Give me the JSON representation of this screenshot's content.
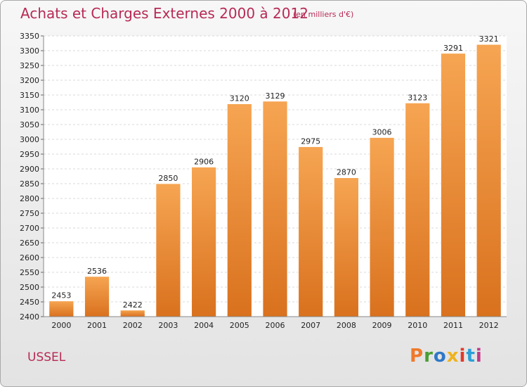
{
  "header": {
    "title": "Achats et Charges Externes 2000 à 2012",
    "subtitle": "(en milliers d'€)"
  },
  "footer": {
    "city": "USSEL",
    "logo": "Proxiti",
    "logo_colors": [
      "#f0792b",
      "#4a9e34",
      "#2f78c8",
      "#f0b21e",
      "#e23a2a",
      "#2aa0d8",
      "#c03a8a"
    ]
  },
  "chart_data": {
    "type": "bar",
    "title": "Achats et Charges Externes 2000 à 2012",
    "subtitle": "(en milliers d'€)",
    "categories": [
      "2000",
      "2001",
      "2002",
      "2003",
      "2004",
      "2005",
      "2006",
      "2007",
      "2008",
      "2009",
      "2010",
      "2011",
      "2012"
    ],
    "values": [
      2453,
      2536,
      2422,
      2850,
      2906,
      3120,
      3129,
      2975,
      2870,
      3006,
      3123,
      3291,
      3321
    ],
    "value_labels": [
      "2453",
      "2536",
      "2422",
      "2850",
      "2906",
      "3120",
      "3129",
      "2975",
      "2870",
      "3006",
      "3123",
      "3291",
      "3321"
    ],
    "ylim": [
      2400,
      3350
    ],
    "yticks": [
      2400,
      2450,
      2500,
      2550,
      2600,
      2650,
      2700,
      2750,
      2800,
      2850,
      2900,
      2950,
      3000,
      3050,
      3100,
      3150,
      3200,
      3250,
      3300,
      3350
    ],
    "grid": true,
    "bar_color": "#f29a45"
  }
}
